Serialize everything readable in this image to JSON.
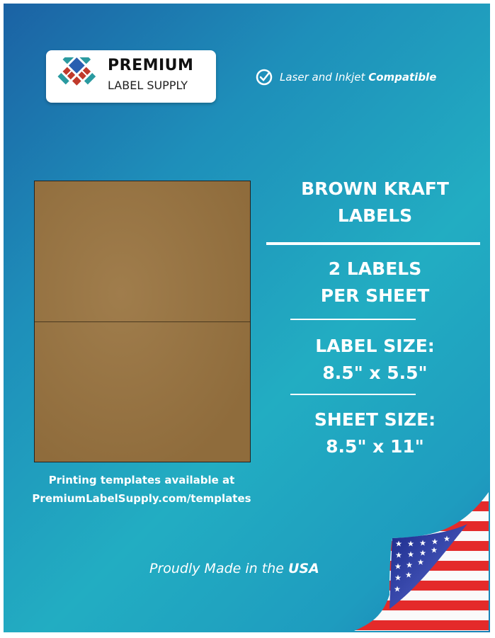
{
  "brand": {
    "name_line1": "PREMIUM",
    "name_line2": "LABEL SUPPLY"
  },
  "compatibility": {
    "icon": "check-circle-icon",
    "text": "Laser and Inkjet",
    "emphasis": "Compatible"
  },
  "product": {
    "title_line1": "BROWN KRAFT",
    "title_line2": "LABELS",
    "count_line1": "2 LABELS",
    "count_line2": "PER SHEET",
    "label_size_heading": "LABEL SIZE:",
    "label_size": "8.5\" x 5.5\"",
    "sheet_size_heading": "SHEET SIZE:",
    "sheet_size": "8.5\" x 11\""
  },
  "templates": {
    "line1": "Printing templates available at",
    "line2": "PremiumLabelSupply.com/templates"
  },
  "origin": {
    "text": "Proudly Made in the",
    "emphasis": "USA"
  },
  "colors": {
    "kraft": "#987544",
    "background_dark": "#1b62a4",
    "background_light": "#22adc2",
    "logo_blue": "#2a5fb0",
    "logo_teal": "#2a9aa0",
    "logo_red": "#c0392b"
  }
}
